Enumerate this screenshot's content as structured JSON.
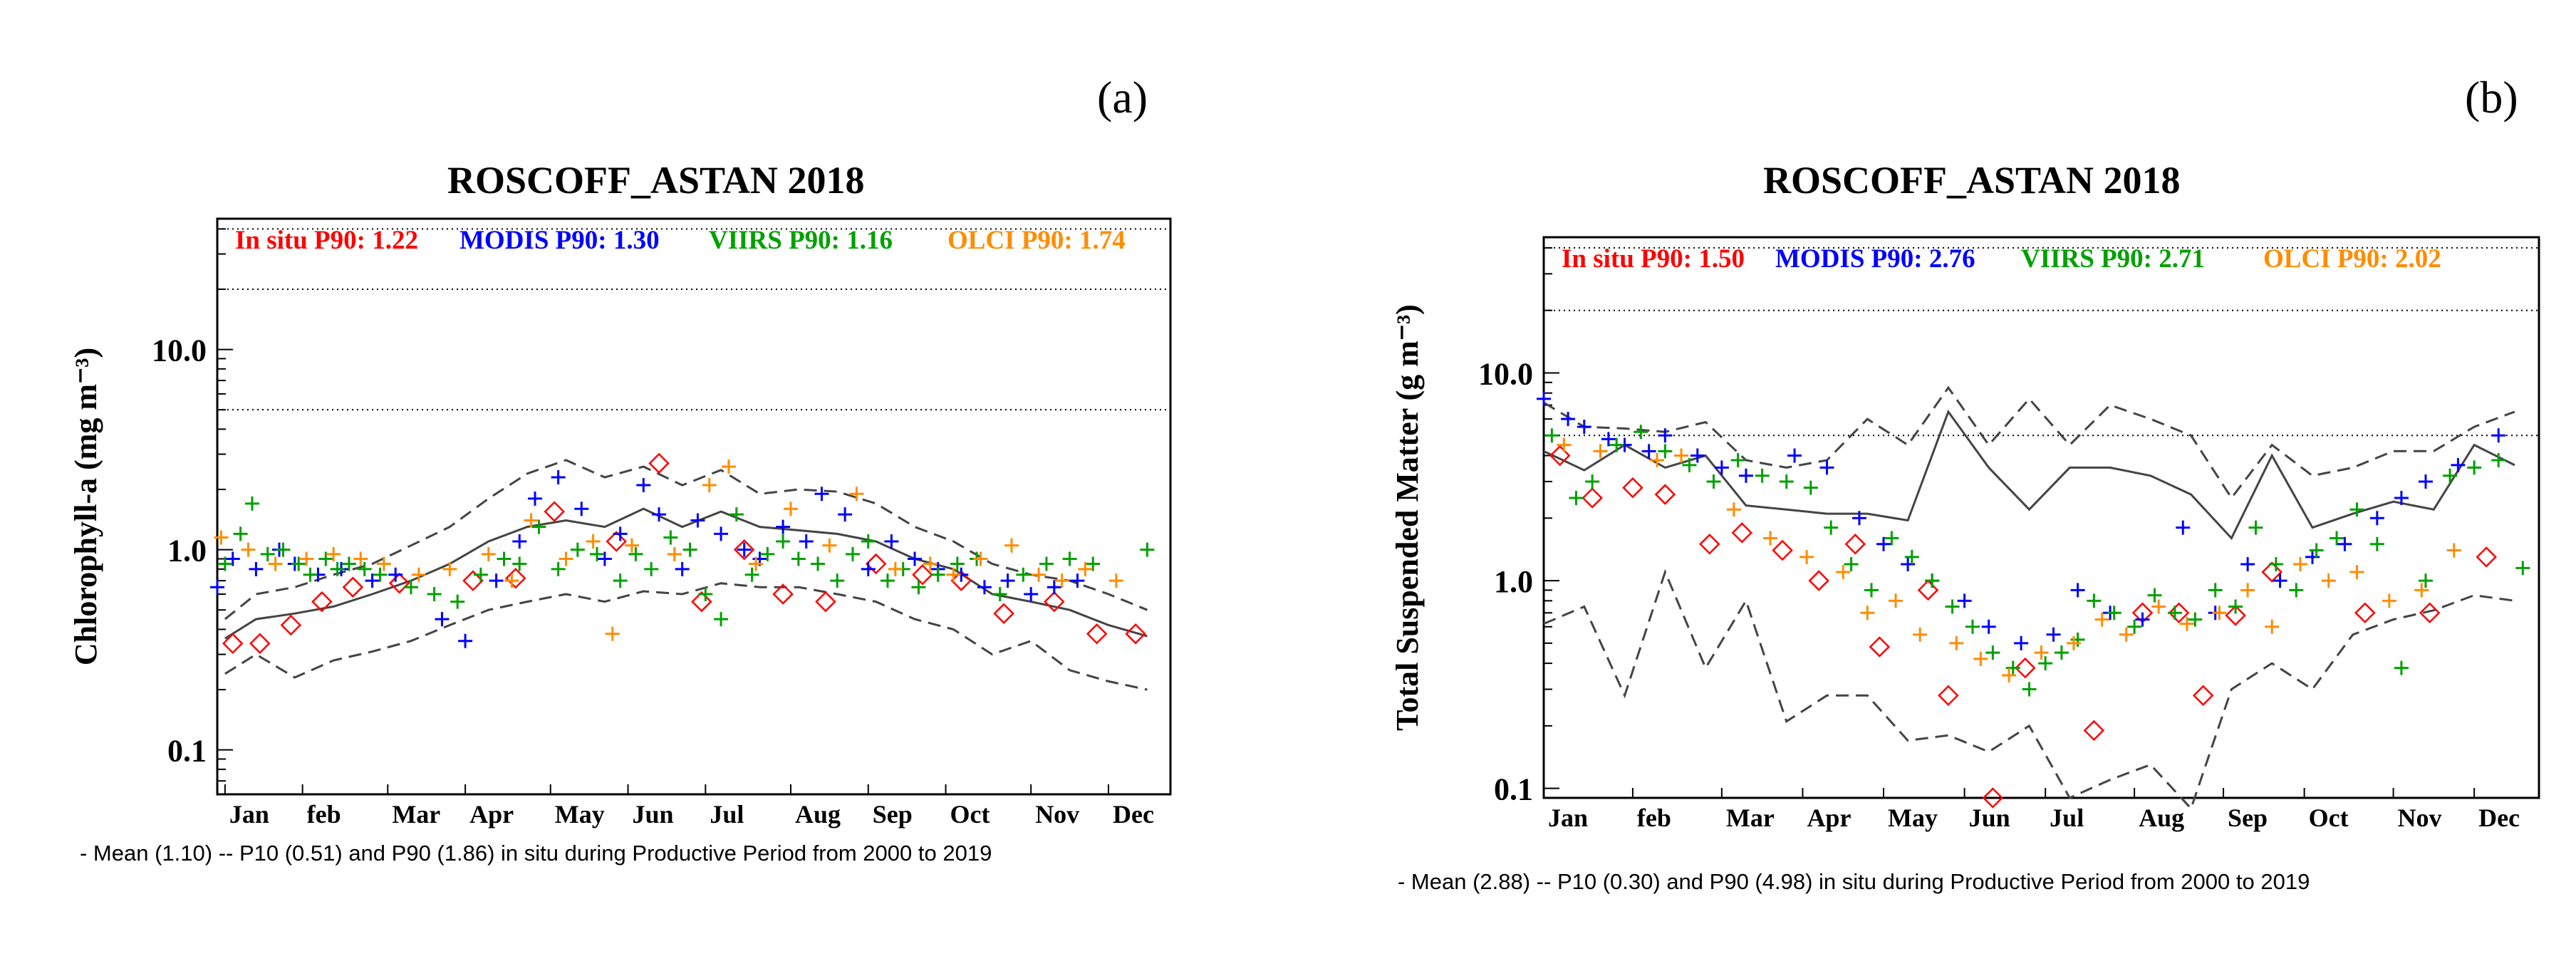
{
  "panel_a": {
    "tag": "(a)",
    "footnote": "- Mean (1.10) -- P10 (0.51) and P90 (1.86) in situ during Productive Period from 2000 to 2019"
  },
  "panel_b": {
    "tag": "(b)",
    "footnote": "- Mean (2.88) -- P10 (0.30) and P90 (4.98) in situ during Productive Period from 2000 to 2019"
  },
  "colors": {
    "insitu": "#ff0000",
    "modis": "#0000ff",
    "viirs": "#00a000",
    "olci": "#ff8c00",
    "lines": "#444444"
  },
  "chart_data": [
    {
      "type": "scatter",
      "title": "ROSCOFF_ASTAN 2018",
      "xlabel": "",
      "ylabel": "Chlorophyll-a (mg m⁻³)",
      "yscale": "log",
      "ylim": [
        0.06,
        45
      ],
      "xlim": [
        0,
        12.3
      ],
      "y_ticks": [
        0.1,
        1.0,
        10.0
      ],
      "y_tick_labels": [
        "0.1",
        "1.0",
        "10.0"
      ],
      "reference_lines": [
        5,
        20,
        40
      ],
      "month_ticks": [
        0.1,
        1.1,
        2.2,
        3.2,
        4.3,
        5.3,
        6.3,
        7.4,
        8.4,
        9.4,
        10.5,
        11.5
      ],
      "month_labels": [
        "Jan",
        "feb",
        "Mar",
        "Apr",
        "May",
        "Jun",
        "Jul",
        "Aug",
        "Sep",
        "Oct",
        "Nov",
        "Dec"
      ],
      "legend": [
        {
          "label": "In situ P90: 1.22",
          "color": "#ff0000"
        },
        {
          "label": "MODIS P90: 1.30",
          "color": "#0000ff"
        },
        {
          "label": "VIIRS P90: 1.16",
          "color": "#00a000"
        },
        {
          "label": "OLCI P90: 1.74",
          "color": "#ff8c00"
        }
      ],
      "climatology": {
        "x": [
          0.1,
          0.5,
          1.0,
          1.5,
          2.0,
          2.5,
          3.0,
          3.5,
          4.0,
          4.5,
          5.0,
          5.5,
          6.0,
          6.5,
          7.0,
          7.5,
          8.0,
          8.5,
          9.0,
          9.5,
          10.0,
          10.5,
          11.0,
          11.5,
          12.0
        ],
        "mean": [
          0.36,
          0.45,
          0.48,
          0.52,
          0.6,
          0.7,
          0.85,
          1.1,
          1.3,
          1.4,
          1.3,
          1.6,
          1.3,
          1.55,
          1.3,
          1.25,
          1.2,
          1.1,
          0.9,
          0.8,
          0.6,
          0.55,
          0.5,
          0.42,
          0.37
        ],
        "p10": [
          0.24,
          0.3,
          0.23,
          0.28,
          0.31,
          0.35,
          0.42,
          0.5,
          0.55,
          0.6,
          0.55,
          0.62,
          0.6,
          0.68,
          0.65,
          0.65,
          0.6,
          0.55,
          0.45,
          0.4,
          0.3,
          0.35,
          0.25,
          0.22,
          0.2
        ],
        "p90": [
          0.45,
          0.6,
          0.65,
          0.75,
          0.85,
          1.05,
          1.3,
          1.8,
          2.4,
          2.8,
          2.3,
          2.6,
          2.1,
          2.5,
          1.9,
          2.0,
          1.95,
          1.7,
          1.3,
          1.1,
          0.85,
          0.75,
          0.7,
          0.6,
          0.5
        ]
      },
      "series": [
        {
          "name": "In situ",
          "color": "#ff0000",
          "marker": "diamond",
          "x": [
            0.2,
            0.55,
            0.95,
            1.35,
            1.75,
            2.35,
            3.3,
            3.85,
            4.35,
            5.15,
            5.7,
            6.25,
            6.8,
            7.3,
            7.85,
            8.5,
            9.1,
            9.6,
            10.15,
            10.8,
            11.35,
            11.85
          ],
          "y": [
            0.34,
            0.34,
            0.42,
            0.55,
            0.65,
            0.68,
            0.7,
            0.72,
            1.55,
            1.1,
            2.7,
            0.55,
            1.0,
            0.6,
            0.55,
            0.85,
            0.75,
            0.7,
            0.48,
            0.55,
            0.38,
            0.38
          ]
        },
        {
          "name": "MODIS",
          "color": "#0000ff",
          "marker": "plus",
          "x": [
            0.0,
            0.2,
            0.5,
            0.8,
            1.0,
            1.3,
            1.6,
            2.0,
            2.3,
            2.9,
            3.2,
            3.6,
            3.9,
            4.1,
            4.4,
            4.7,
            5.0,
            5.2,
            5.5,
            5.7,
            6.0,
            6.2,
            6.5,
            6.8,
            7.0,
            7.3,
            7.6,
            7.8,
            8.1,
            8.4,
            8.7,
            9.0,
            9.3,
            9.6,
            9.9,
            10.2,
            10.5,
            10.8,
            11.1
          ],
          "y": [
            0.65,
            0.9,
            0.8,
            1.0,
            0.85,
            0.75,
            0.8,
            0.7,
            0.75,
            0.45,
            0.35,
            0.7,
            1.1,
            1.8,
            2.3,
            1.6,
            0.9,
            1.2,
            2.1,
            1.5,
            0.8,
            1.4,
            1.2,
            1.0,
            0.9,
            1.3,
            1.1,
            1.9,
            1.5,
            0.8,
            1.1,
            0.9,
            0.8,
            0.75,
            0.65,
            0.7,
            0.6,
            0.65,
            0.7
          ]
        },
        {
          "name": "VIIRS",
          "color": "#00a000",
          "marker": "plus",
          "x": [
            0.1,
            0.3,
            0.45,
            0.65,
            0.85,
            1.05,
            1.2,
            1.4,
            1.55,
            1.7,
            1.9,
            2.1,
            2.5,
            2.8,
            3.1,
            3.4,
            3.7,
            3.9,
            4.15,
            4.4,
            4.65,
            4.9,
            5.2,
            5.4,
            5.6,
            5.85,
            6.1,
            6.3,
            6.5,
            6.7,
            6.9,
            7.1,
            7.3,
            7.5,
            7.75,
            8.0,
            8.2,
            8.4,
            8.65,
            8.85,
            9.05,
            9.3,
            9.55,
            9.8,
            10.1,
            10.4,
            10.7,
            11.0,
            11.3,
            12.0
          ],
          "y": [
            0.85,
            1.2,
            1.7,
            0.95,
            1.0,
            0.85,
            0.75,
            0.9,
            0.8,
            0.85,
            0.8,
            0.75,
            0.65,
            0.6,
            0.55,
            0.75,
            0.9,
            0.85,
            1.3,
            0.8,
            1.0,
            0.95,
            0.7,
            0.95,
            0.8,
            1.15,
            1.0,
            0.6,
            0.45,
            1.5,
            0.75,
            0.95,
            1.1,
            0.9,
            0.85,
            0.7,
            0.95,
            1.1,
            0.7,
            0.8,
            0.65,
            0.75,
            0.85,
            0.9,
            0.6,
            0.75,
            0.85,
            0.9,
            0.85,
            1.0
          ]
        },
        {
          "name": "OLCI",
          "color": "#ff8c00",
          "marker": "plus",
          "x": [
            0.05,
            0.4,
            0.75,
            1.15,
            1.5,
            1.85,
            2.15,
            2.6,
            3.0,
            3.5,
            3.8,
            4.05,
            4.5,
            4.85,
            5.1,
            5.35,
            5.9,
            6.35,
            6.6,
            6.95,
            7.4,
            7.9,
            8.25,
            8.75,
            9.2,
            9.5,
            9.85,
            10.25,
            10.6,
            10.9,
            11.2,
            11.6
          ],
          "y": [
            1.15,
            1.0,
            0.85,
            0.9,
            0.95,
            0.9,
            0.85,
            0.75,
            0.8,
            0.95,
            0.7,
            1.4,
            0.9,
            1.1,
            0.38,
            1.05,
            0.95,
            2.1,
            2.6,
            0.85,
            1.6,
            1.05,
            1.9,
            0.8,
            0.85,
            0.75,
            0.9,
            1.05,
            0.75,
            0.7,
            0.8,
            0.7
          ]
        }
      ]
    },
    {
      "type": "scatter",
      "title": "ROSCOFF_ASTAN 2018",
      "xlabel": "",
      "ylabel": "Total Suspended Matter (g m⁻³)",
      "yscale": "log",
      "ylim": [
        0.09,
        45
      ],
      "xlim": [
        0,
        12.3
      ],
      "y_ticks": [
        0.1,
        1.0,
        10.0
      ],
      "y_tick_labels": [
        "0.1",
        "1.0",
        "10.0"
      ],
      "reference_lines": [
        5,
        20,
        40
      ],
      "month_ticks": [
        0.0,
        1.1,
        2.2,
        3.2,
        4.2,
        5.2,
        6.2,
        7.3,
        8.4,
        9.4,
        10.5,
        11.5
      ],
      "month_labels": [
        "Jan",
        "feb",
        "Mar",
        "Apr",
        "May",
        "Jun",
        "Jul",
        "Aug",
        "Sep",
        "Oct",
        "Nov",
        "Dec"
      ],
      "legend": [
        {
          "label": "In situ P90: 1.50",
          "color": "#ff0000"
        },
        {
          "label": "MODIS P90: 2.76",
          "color": "#0000ff"
        },
        {
          "label": "VIIRS P90: 2.71",
          "color": "#00a000"
        },
        {
          "label": "OLCI P90: 2.02",
          "color": "#ff8c00"
        }
      ],
      "climatology": {
        "x": [
          0.0,
          0.5,
          1.0,
          1.5,
          2.0,
          2.5,
          3.0,
          3.5,
          4.0,
          4.5,
          5.0,
          5.5,
          6.0,
          6.5,
          7.0,
          7.5,
          8.0,
          8.5,
          9.0,
          9.5,
          10.0,
          10.5,
          11.0,
          11.5,
          12.0
        ],
        "mean": [
          4.2,
          3.4,
          4.5,
          3.5,
          4.0,
          2.3,
          2.2,
          2.1,
          2.1,
          1.95,
          6.5,
          3.5,
          2.2,
          3.5,
          3.5,
          3.2,
          2.6,
          1.6,
          4.0,
          1.8,
          2.1,
          2.4,
          2.2,
          4.5,
          3.6
        ],
        "p10": [
          0.62,
          0.75,
          0.28,
          1.1,
          0.38,
          0.8,
          0.21,
          0.28,
          0.28,
          0.17,
          0.18,
          0.15,
          0.2,
          0.09,
          0.11,
          0.13,
          0.08,
          0.3,
          0.4,
          0.3,
          0.55,
          0.65,
          0.72,
          0.85,
          0.8
        ],
        "p90": [
          7.2,
          5.5,
          5.4,
          5.2,
          5.8,
          3.8,
          3.5,
          3.8,
          6.0,
          4.5,
          8.5,
          4.5,
          7.5,
          4.5,
          7.0,
          6.0,
          5.0,
          2.5,
          4.5,
          3.2,
          3.5,
          4.2,
          4.2,
          5.5,
          6.5
        ]
      },
      "series": [
        {
          "name": "In situ",
          "color": "#ff0000",
          "marker": "diamond",
          "x": [
            0.2,
            0.6,
            1.1,
            1.5,
            2.05,
            2.45,
            2.95,
            3.4,
            3.85,
            4.15,
            4.75,
            5.0,
            5.55,
            5.95,
            6.8,
            7.4,
            7.85,
            8.15,
            8.55,
            9.0,
            10.15,
            10.95,
            11.65
          ],
          "y": [
            4.0,
            2.5,
            2.8,
            2.6,
            1.5,
            1.7,
            1.4,
            1.0,
            1.5,
            0.48,
            0.9,
            0.28,
            0.09,
            0.38,
            0.19,
            0.7,
            0.7,
            0.28,
            0.68,
            1.1,
            0.7,
            0.7,
            1.3
          ]
        },
        {
          "name": "MODIS",
          "color": "#0000ff",
          "marker": "plus",
          "x": [
            0.0,
            0.3,
            0.5,
            0.8,
            1.0,
            1.3,
            1.5,
            1.9,
            2.2,
            2.5,
            3.1,
            3.5,
            3.9,
            4.2,
            4.5,
            4.8,
            5.2,
            5.5,
            5.9,
            6.3,
            6.6,
            7.0,
            7.4,
            7.9,
            8.3,
            8.7,
            9.1,
            9.5,
            9.9,
            10.3,
            10.6,
            10.9,
            11.3,
            11.8
          ],
          "y": [
            7.5,
            6.0,
            5.5,
            4.8,
            4.5,
            4.2,
            5.0,
            4.0,
            3.5,
            3.2,
            4.0,
            3.5,
            2.0,
            1.5,
            1.2,
            1.0,
            0.8,
            0.6,
            0.5,
            0.55,
            0.9,
            0.7,
            0.65,
            1.8,
            0.7,
            1.2,
            1.0,
            1.3,
            1.5,
            2.0,
            2.5,
            3.0,
            3.6,
            5.0
          ]
        },
        {
          "name": "VIIRS",
          "color": "#00a000",
          "marker": "plus",
          "x": [
            0.1,
            0.4,
            0.6,
            0.9,
            1.2,
            1.5,
            1.8,
            2.1,
            2.4,
            2.7,
            3.0,
            3.3,
            3.55,
            3.8,
            4.05,
            4.3,
            4.55,
            4.8,
            5.05,
            5.3,
            5.55,
            5.8,
            6.0,
            6.2,
            6.4,
            6.6,
            6.8,
            7.05,
            7.3,
            7.55,
            7.8,
            8.05,
            8.3,
            8.55,
            8.8,
            9.05,
            9.3,
            9.55,
            9.8,
            10.05,
            10.3,
            10.6,
            10.9,
            11.2,
            11.5,
            11.8,
            12.1
          ],
          "y": [
            5.0,
            2.5,
            3.0,
            4.5,
            5.2,
            4.2,
            3.6,
            3.0,
            3.8,
            3.2,
            3.0,
            2.8,
            1.8,
            1.2,
            0.9,
            1.6,
            1.3,
            1.0,
            0.75,
            0.6,
            0.45,
            0.38,
            0.3,
            0.4,
            0.45,
            0.52,
            0.8,
            0.7,
            0.6,
            0.85,
            0.7,
            0.65,
            0.9,
            0.75,
            1.8,
            1.2,
            0.9,
            1.4,
            1.6,
            2.2,
            1.5,
            0.38,
            1.0,
            3.2,
            3.5,
            3.8,
            1.15
          ]
        },
        {
          "name": "OLCI",
          "color": "#ff8c00",
          "marker": "plus",
          "x": [
            0.25,
            0.7,
            1.4,
            1.7,
            2.35,
            2.8,
            3.25,
            3.7,
            4.0,
            4.35,
            4.65,
            5.1,
            5.4,
            5.75,
            6.15,
            6.55,
            6.9,
            7.2,
            7.6,
            7.95,
            8.35,
            8.7,
            9.0,
            9.35,
            9.7,
            10.05,
            10.45,
            10.85,
            11.25
          ],
          "y": [
            4.5,
            4.2,
            3.8,
            4.0,
            2.2,
            1.6,
            1.3,
            1.1,
            0.7,
            0.8,
            0.55,
            0.5,
            0.42,
            0.35,
            0.45,
            0.5,
            0.65,
            0.55,
            0.75,
            0.62,
            0.7,
            0.9,
            0.6,
            1.2,
            1.0,
            1.1,
            0.8,
            0.9,
            1.4
          ]
        }
      ]
    }
  ]
}
